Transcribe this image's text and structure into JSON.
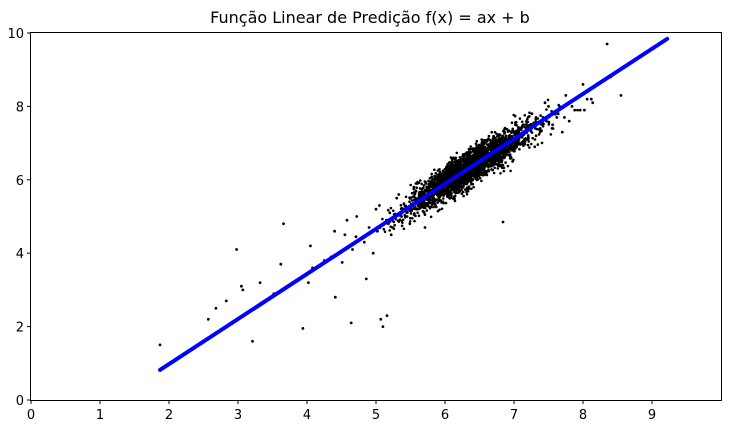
{
  "chart_data": {
    "type": "scatter",
    "title": "Função Linear de Predição f(x) = ax + b",
    "xlabel": "",
    "ylabel": "",
    "xlim": [
      0,
      10
    ],
    "ylim": [
      0,
      10
    ],
    "x_ticks": [
      "0",
      "1",
      "2",
      "3",
      "4",
      "5",
      "6",
      "7",
      "8",
      "9"
    ],
    "y_ticks": [
      "0",
      "2",
      "4",
      "6",
      "8",
      "10"
    ],
    "grid": false,
    "legend": "none",
    "colors": {
      "points": "#000000",
      "line": "#0000ff"
    },
    "scatter_series": {
      "x": [
        1.87,
        2.57,
        2.68,
        2.83,
        2.98,
        3.07,
        3.21,
        3.32,
        3.66,
        3.94,
        4.08,
        4.41,
        4.51,
        4.64,
        4.71,
        4.86,
        4.96,
        5.07,
        5.1,
        5.16,
        5.22,
        5.37,
        5.43,
        5.58,
        5.71,
        5.83,
        6.12,
        6.46,
        6.63,
        6.84,
        6.98,
        7.14,
        7.3,
        7.45,
        7.7,
        7.92,
        8.22,
        8.4,
        8.55,
        8.35,
        3.05,
        3.52,
        3.62,
        4.02,
        4.25,
        4.66,
        4.83,
        5.02,
        5.15,
        5.24,
        5.38,
        5.49,
        5.62,
        5.75,
        5.88,
        5.97,
        6.06,
        6.14,
        6.22,
        6.31,
        6.41,
        6.49,
        6.58,
        6.7,
        6.78,
        6.86,
        6.95,
        7.04,
        7.12,
        7.2,
        7.31,
        7.38,
        7.47,
        7.56,
        7.64,
        7.73,
        7.84,
        7.96,
        8.06,
        8.14,
        4.4,
        4.55,
        4.72,
        4.9,
        5.05,
        5.2,
        5.33,
        5.48,
        5.6,
        5.72,
        5.85,
        5.96,
        6.08,
        6.2,
        6.32,
        6.44,
        6.55,
        6.66,
        6.78,
        6.9,
        7.02,
        7.15,
        7.26,
        7.38,
        7.5,
        7.62,
        7.75,
        7.88,
        8.0,
        8.12,
        4.05,
        4.35,
        4.58,
        4.8,
        5.0,
        5.18,
        5.3,
        5.45,
        5.55,
        5.68,
        5.8,
        5.92,
        6.02,
        6.15,
        6.26,
        6.38,
        6.5,
        6.62,
        6.74,
        6.86,
        6.96,
        7.08,
        7.18,
        7.32,
        7.42,
        7.55,
        7.66,
        7.8,
        7.9,
        8.02
      ],
      "y": [
        1.5,
        2.2,
        2.5,
        2.7,
        4.1,
        3.0,
        1.6,
        3.2,
        4.8,
        1.95,
        3.6,
        2.8,
        3.75,
        2.1,
        4.45,
        3.3,
        4.0,
        2.2,
        2.0,
        2.3,
        4.5,
        5.0,
        5.2,
        5.9,
        4.7,
        5.4,
        6.6,
        6.1,
        6.5,
        4.85,
        6.5,
        7.5,
        6.9,
        8.1,
        7.3,
        7.9,
        8.6,
        8.8,
        8.3,
        9.7,
        3.1,
        2.9,
        3.7,
        3.2,
        3.8,
        4.1,
        4.3,
        4.6,
        4.9,
        4.7,
        5.1,
        4.8,
        5.3,
        5.5,
        5.7,
        5.4,
        5.9,
        6.0,
        5.8,
        6.2,
        6.3,
        6.1,
        6.5,
        6.4,
        6.8,
        6.6,
        7.0,
        6.9,
        7.2,
        7.1,
        7.4,
        7.3,
        7.6,
        7.5,
        7.8,
        7.7,
        8.0,
        7.9,
        8.2,
        8.1,
        4.6,
        4.5,
        5.0,
        4.7,
        5.3,
        5.1,
        5.6,
        5.2,
        5.9,
        5.5,
        6.1,
        5.7,
        6.4,
        6.0,
        6.7,
        6.3,
        7.0,
        6.6,
        7.2,
        6.9,
        7.5,
        7.1,
        7.8,
        7.4,
        8.0,
        7.7,
        8.3,
        7.9,
        8.6,
        8.2,
        4.2,
        3.9,
        4.9,
        4.4,
        5.2,
        4.8,
        5.5,
        5.0,
        5.8,
        5.3,
        5.95,
        5.6,
        6.2,
        5.9,
        6.5,
        6.1,
        6.8,
        6.4,
        7.0,
        6.7,
        7.3,
        7.0,
        7.5,
        7.2,
        7.7,
        7.4,
        8.0,
        7.6,
        8.2,
        7.9
      ]
    },
    "line_series": {
      "x": [
        1.87,
        9.22
      ],
      "y": [
        0.82,
        9.84
      ]
    }
  }
}
